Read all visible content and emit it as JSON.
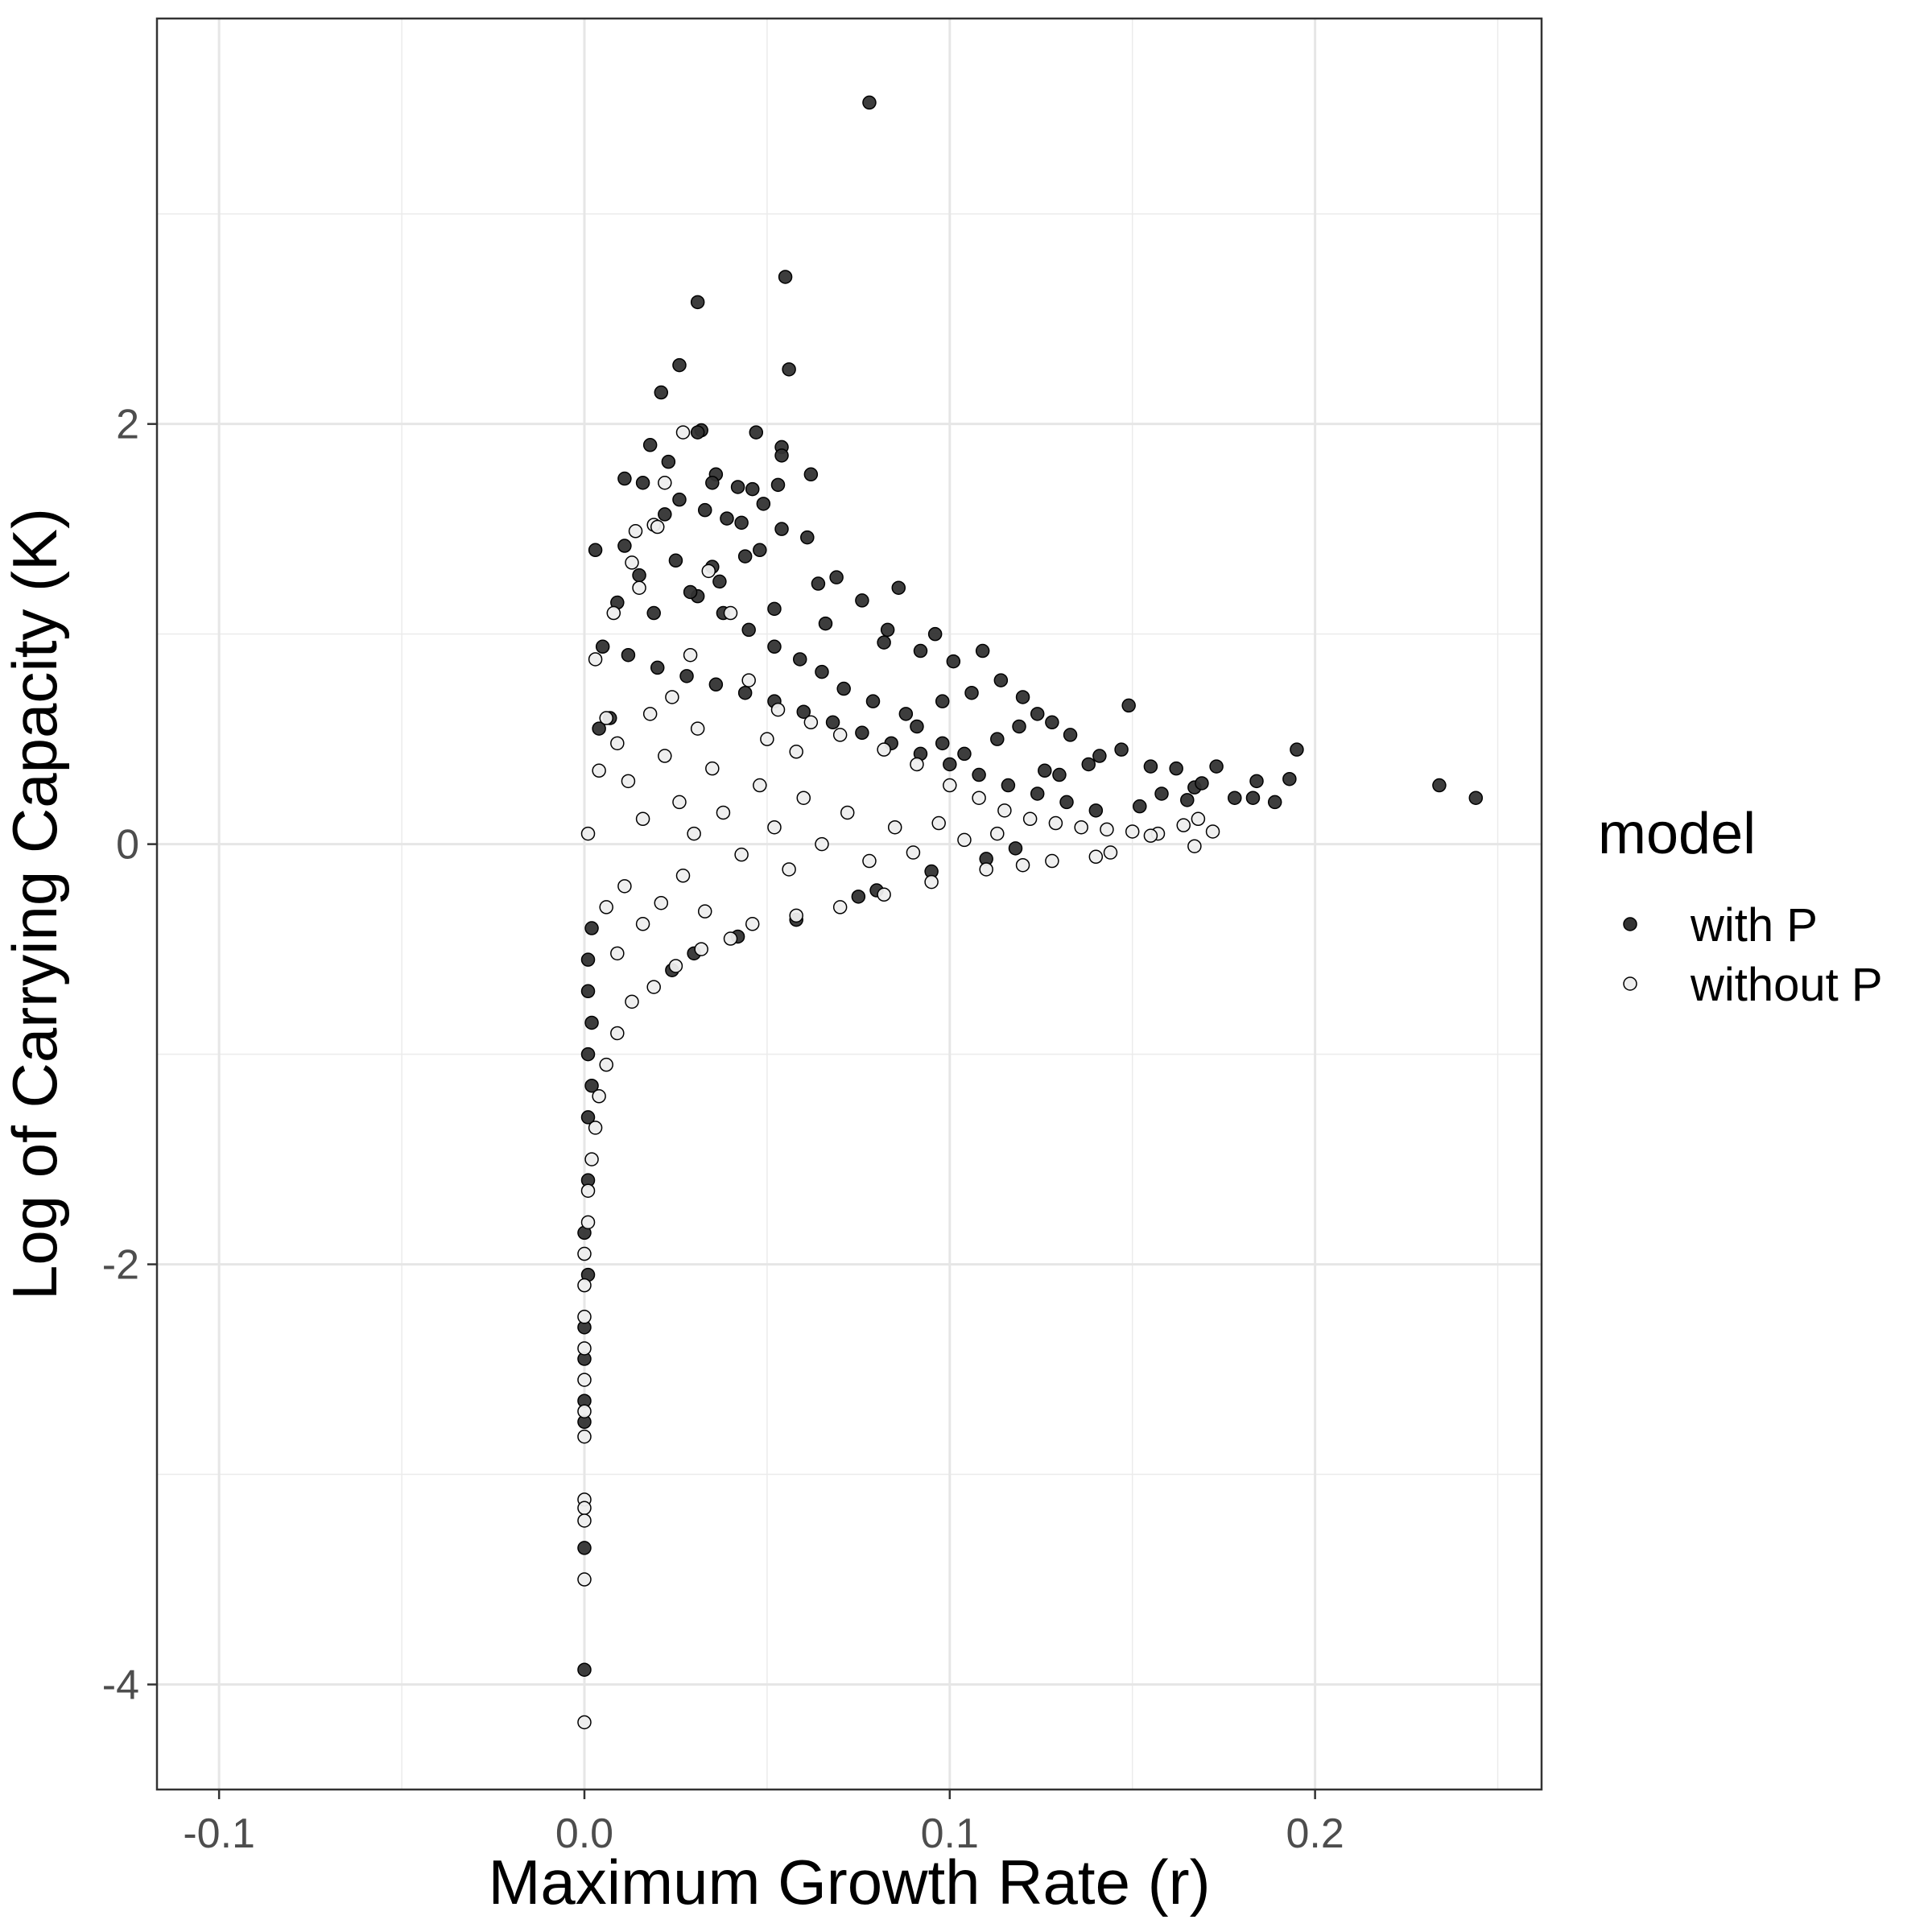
{
  "chart_data": {
    "type": "scatter",
    "xlabel": "Maximum Growth Rate (r)",
    "ylabel": "Log of Carrying Capacity (K)",
    "xlim": [
      -0.117,
      0.262
    ],
    "ylim": [
      -4.5,
      3.93
    ],
    "x_ticks": [
      {
        "value": -0.1,
        "label": "-0.1"
      },
      {
        "value": 0.0,
        "label": "0.0"
      },
      {
        "value": 0.1,
        "label": "0.1"
      },
      {
        "value": 0.2,
        "label": "0.2"
      }
    ],
    "y_ticks": [
      {
        "value": -4,
        "label": "-4"
      },
      {
        "value": -2,
        "label": "-2"
      },
      {
        "value": 0,
        "label": "0"
      },
      {
        "value": 2,
        "label": "2"
      }
    ],
    "x_minor_grid": [
      -0.05,
      0.05,
      0.15,
      0.25
    ],
    "y_minor_grid": [
      -3,
      -1,
      1,
      3
    ],
    "grid": true,
    "legend": {
      "title": "model",
      "position": "right",
      "entries": [
        {
          "label": "with P",
          "fill": "#333333",
          "stroke": "#000000"
        },
        {
          "label": "without P",
          "fill": "#eeeeee",
          "stroke": "#000000"
        }
      ]
    },
    "series": [
      {
        "name": "with P",
        "fill": "#333333",
        "stroke": "#000000",
        "points": [
          [
            0.078,
            3.53
          ],
          [
            0.055,
            2.7
          ],
          [
            0.031,
            2.58
          ],
          [
            0.056,
            2.26
          ],
          [
            0.026,
            2.28
          ],
          [
            0.021,
            2.15
          ],
          [
            0.032,
            1.97
          ],
          [
            0.031,
            1.96
          ],
          [
            0.047,
            1.96
          ],
          [
            0.054,
            1.89
          ],
          [
            0.054,
            1.85
          ],
          [
            0.018,
            1.9
          ],
          [
            0.023,
            1.82
          ],
          [
            0.062,
            1.76
          ],
          [
            0.036,
            1.76
          ],
          [
            0.053,
            1.71
          ],
          [
            0.035,
            1.72
          ],
          [
            0.042,
            1.7
          ],
          [
            0.046,
            1.69
          ],
          [
            0.016,
            1.72
          ],
          [
            0.011,
            1.74
          ],
          [
            0.026,
            1.64
          ],
          [
            0.039,
            1.55
          ],
          [
            0.043,
            1.53
          ],
          [
            0.033,
            1.59
          ],
          [
            0.049,
            1.62
          ],
          [
            0.022,
            1.57
          ],
          [
            0.054,
            1.5
          ],
          [
            0.061,
            1.46
          ],
          [
            0.003,
            1.4
          ],
          [
            0.011,
            1.42
          ],
          [
            0.025,
            1.35
          ],
          [
            0.035,
            1.32
          ],
          [
            0.044,
            1.37
          ],
          [
            0.048,
            1.4
          ],
          [
            0.037,
            1.25
          ],
          [
            0.069,
            1.27
          ],
          [
            0.064,
            1.24
          ],
          [
            0.086,
            1.22
          ],
          [
            0.076,
            1.16
          ],
          [
            0.009,
            1.15
          ],
          [
            0.031,
            1.18
          ],
          [
            0.052,
            1.12
          ],
          [
            0.019,
            1.1
          ],
          [
            0.083,
            1.02
          ],
          [
            0.066,
            1.05
          ],
          [
            0.096,
            1.0
          ],
          [
            0.082,
            0.96
          ],
          [
            0.092,
            0.92
          ],
          [
            0.101,
            0.87
          ],
          [
            0.109,
            0.92
          ],
          [
            0.114,
            0.78
          ],
          [
            0.106,
            0.72
          ],
          [
            0.098,
            0.68
          ],
          [
            0.12,
            0.7
          ],
          [
            0.124,
            0.62
          ],
          [
            0.119,
            0.56
          ],
          [
            0.113,
            0.5
          ],
          [
            0.128,
            0.58
          ],
          [
            0.133,
            0.52
          ],
          [
            0.149,
            0.66
          ],
          [
            0.141,
            0.42
          ],
          [
            0.138,
            0.38
          ],
          [
            0.147,
            0.45
          ],
          [
            0.155,
            0.37
          ],
          [
            0.162,
            0.36
          ],
          [
            0.173,
            0.37
          ],
          [
            0.167,
            0.27
          ],
          [
            0.169,
            0.29
          ],
          [
            0.165,
            0.21
          ],
          [
            0.178,
            0.22
          ],
          [
            0.183,
            0.22
          ],
          [
            0.189,
            0.2
          ],
          [
            0.184,
            0.3
          ],
          [
            0.193,
            0.31
          ],
          [
            0.195,
            0.45
          ],
          [
            0.234,
            0.28
          ],
          [
            0.244,
            0.22
          ],
          [
            0.158,
            0.24
          ],
          [
            0.152,
            0.18
          ],
          [
            0.13,
            0.33
          ],
          [
            0.126,
            0.35
          ],
          [
            0.104,
            0.43
          ],
          [
            0.098,
            0.48
          ],
          [
            0.091,
            0.56
          ],
          [
            0.088,
            0.62
          ],
          [
            0.079,
            0.68
          ],
          [
            0.071,
            0.74
          ],
          [
            0.065,
            0.82
          ],
          [
            0.059,
            0.88
          ],
          [
            0.052,
            0.94
          ],
          [
            0.045,
            1.02
          ],
          [
            0.038,
            1.1
          ],
          [
            0.029,
            1.2
          ],
          [
            0.015,
            1.28
          ],
          [
            0.005,
            0.94
          ],
          [
            0.012,
            0.9
          ],
          [
            0.02,
            0.84
          ],
          [
            0.028,
            0.8
          ],
          [
            0.036,
            0.76
          ],
          [
            0.044,
            0.72
          ],
          [
            0.052,
            0.68
          ],
          [
            0.06,
            0.63
          ],
          [
            0.068,
            0.58
          ],
          [
            0.076,
            0.53
          ],
          [
            0.084,
            0.48
          ],
          [
            0.092,
            0.43
          ],
          [
            0.1,
            0.38
          ],
          [
            0.108,
            0.33
          ],
          [
            0.116,
            0.28
          ],
          [
            0.124,
            0.24
          ],
          [
            0.132,
            0.2
          ],
          [
            0.14,
            0.16
          ],
          [
            0.002,
            -0.4
          ],
          [
            0.001,
            -0.55
          ],
          [
            0.001,
            -0.7
          ],
          [
            0.002,
            -0.85
          ],
          [
            0.001,
            -1.0
          ],
          [
            0.002,
            -1.15
          ],
          [
            0.001,
            -1.3
          ],
          [
            0.001,
            -1.6
          ],
          [
            0.0,
            -1.85
          ],
          [
            0.001,
            -2.05
          ],
          [
            0.0,
            -2.3
          ],
          [
            0.0,
            -2.45
          ],
          [
            0.0,
            -2.65
          ],
          [
            0.0,
            -2.75
          ],
          [
            0.0,
            -3.35
          ],
          [
            0.0,
            -3.93
          ],
          [
            0.024,
            -0.6
          ],
          [
            0.03,
            -0.52
          ],
          [
            0.042,
            -0.44
          ],
          [
            0.058,
            -0.36
          ],
          [
            0.075,
            -0.25
          ],
          [
            0.08,
            -0.22
          ],
          [
            0.095,
            -0.13
          ],
          [
            0.11,
            -0.07
          ],
          [
            0.118,
            -0.02
          ],
          [
            0.004,
            0.55
          ],
          [
            0.007,
            0.6
          ]
        ]
      },
      {
        "name": "without P",
        "fill": "#eeeeee",
        "stroke": "#000000",
        "points": [
          [
            0.027,
            1.96
          ],
          [
            0.019,
            1.52
          ],
          [
            0.014,
            1.49
          ],
          [
            0.02,
            1.51
          ],
          [
            0.013,
            1.34
          ],
          [
            0.022,
            1.72
          ],
          [
            0.015,
            1.22
          ],
          [
            0.008,
            1.1
          ],
          [
            0.003,
            0.88
          ],
          [
            0.034,
            1.3
          ],
          [
            0.04,
            1.1
          ],
          [
            0.029,
            0.9
          ],
          [
            0.045,
            0.78
          ],
          [
            0.053,
            0.64
          ],
          [
            0.062,
            0.58
          ],
          [
            0.07,
            0.52
          ],
          [
            0.082,
            0.45
          ],
          [
            0.091,
            0.38
          ],
          [
            0.1,
            0.28
          ],
          [
            0.108,
            0.22
          ],
          [
            0.115,
            0.16
          ],
          [
            0.122,
            0.12
          ],
          [
            0.129,
            0.1
          ],
          [
            0.136,
            0.08
          ],
          [
            0.143,
            0.07
          ],
          [
            0.15,
            0.06
          ],
          [
            0.157,
            0.05
          ],
          [
            0.164,
            0.09
          ],
          [
            0.168,
            0.12
          ],
          [
            0.172,
            0.06
          ],
          [
            0.167,
            -0.01
          ],
          [
            0.155,
            0.04
          ],
          [
            0.144,
            -0.04
          ],
          [
            0.14,
            -0.06
          ],
          [
            0.128,
            -0.08
          ],
          [
            0.12,
            -0.1
          ],
          [
            0.11,
            -0.12
          ],
          [
            0.095,
            -0.18
          ],
          [
            0.082,
            -0.24
          ],
          [
            0.07,
            -0.3
          ],
          [
            0.058,
            -0.34
          ],
          [
            0.046,
            -0.38
          ],
          [
            0.04,
            -0.45
          ],
          [
            0.032,
            -0.5
          ],
          [
            0.025,
            -0.58
          ],
          [
            0.019,
            -0.68
          ],
          [
            0.013,
            -0.75
          ],
          [
            0.009,
            -0.9
          ],
          [
            0.006,
            -1.05
          ],
          [
            0.004,
            -1.2
          ],
          [
            0.003,
            -1.35
          ],
          [
            0.002,
            -1.5
          ],
          [
            0.001,
            -1.65
          ],
          [
            0.001,
            -1.8
          ],
          [
            0.0,
            -1.95
          ],
          [
            0.0,
            -2.1
          ],
          [
            0.0,
            -2.25
          ],
          [
            0.0,
            -2.4
          ],
          [
            0.0,
            -2.55
          ],
          [
            0.0,
            -2.7
          ],
          [
            0.0,
            -2.82
          ],
          [
            0.0,
            -3.12
          ],
          [
            0.0,
            -3.16
          ],
          [
            0.0,
            -3.22
          ],
          [
            0.0,
            -3.5
          ],
          [
            0.0,
            -4.18
          ],
          [
            0.001,
            0.05
          ],
          [
            0.004,
            0.35
          ],
          [
            0.006,
            0.6
          ],
          [
            0.009,
            0.48
          ],
          [
            0.012,
            0.3
          ],
          [
            0.016,
            0.12
          ],
          [
            0.022,
            0.42
          ],
          [
            0.026,
            0.2
          ],
          [
            0.03,
            0.05
          ],
          [
            0.035,
            0.36
          ],
          [
            0.038,
            0.15
          ],
          [
            0.043,
            -0.05
          ],
          [
            0.048,
            0.28
          ],
          [
            0.052,
            0.08
          ],
          [
            0.056,
            -0.12
          ],
          [
            0.06,
            0.22
          ],
          [
            0.065,
            0.0
          ],
          [
            0.072,
            0.15
          ],
          [
            0.078,
            -0.08
          ],
          [
            0.085,
            0.08
          ],
          [
            0.09,
            -0.04
          ],
          [
            0.097,
            0.1
          ],
          [
            0.104,
            0.02
          ],
          [
            0.113,
            0.05
          ],
          [
            0.011,
            -0.2
          ],
          [
            0.016,
            -0.38
          ],
          [
            0.021,
            -0.28
          ],
          [
            0.027,
            -0.15
          ],
          [
            0.033,
            -0.32
          ],
          [
            0.009,
            -0.52
          ],
          [
            0.006,
            -0.3
          ],
          [
            0.018,
            0.62
          ],
          [
            0.024,
            0.7
          ],
          [
            0.031,
            0.55
          ],
          [
            0.05,
            0.5
          ],
          [
            0.058,
            0.44
          ]
        ]
      }
    ]
  }
}
